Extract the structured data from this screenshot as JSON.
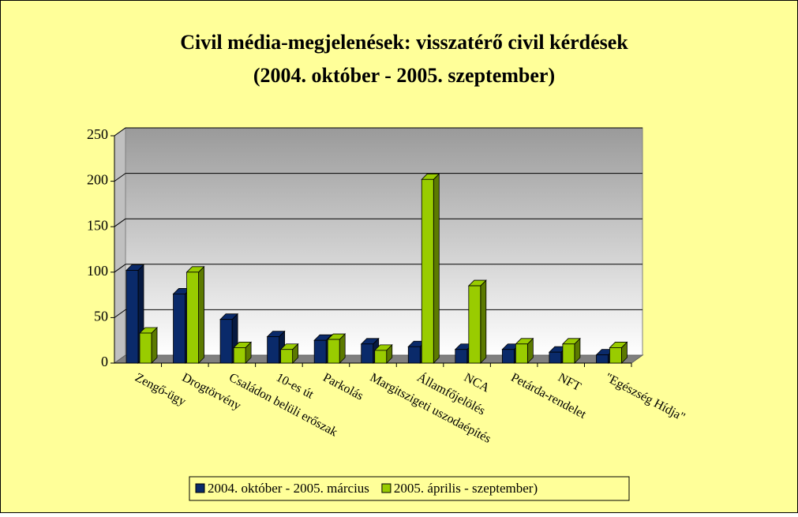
{
  "chart_data": {
    "type": "bar3d",
    "title": [
      "Civil média-megjelenések: visszatérő civil kérdések",
      "(2004. október - 2005. szeptember)"
    ],
    "categories": [
      "Zengő-ügy",
      "Drogtörvény",
      "Családon belüli erőszak",
      "10-es út",
      "Parkolás",
      "Margitszigeti uszodaépítés",
      "Államfőjelölés",
      "NCA",
      "Petárda-rendelet",
      "NFT",
      "\"Egészség Hídja\""
    ],
    "series": [
      {
        "name": "2004. október - 2005. március",
        "color": "#0a2a6a",
        "values": [
          102,
          76,
          48,
          29,
          25,
          21,
          18,
          15,
          15,
          12,
          9
        ]
      },
      {
        "name": "2005. április - szeptember)",
        "color": "#99cc00",
        "values": [
          33,
          100,
          17,
          15,
          26,
          14,
          202,
          85,
          21,
          21,
          17
        ]
      }
    ],
    "ylim": [
      0,
      250
    ],
    "yticks": [
      0,
      50,
      100,
      150,
      200,
      250
    ],
    "grid": true,
    "legend": "bottom"
  }
}
